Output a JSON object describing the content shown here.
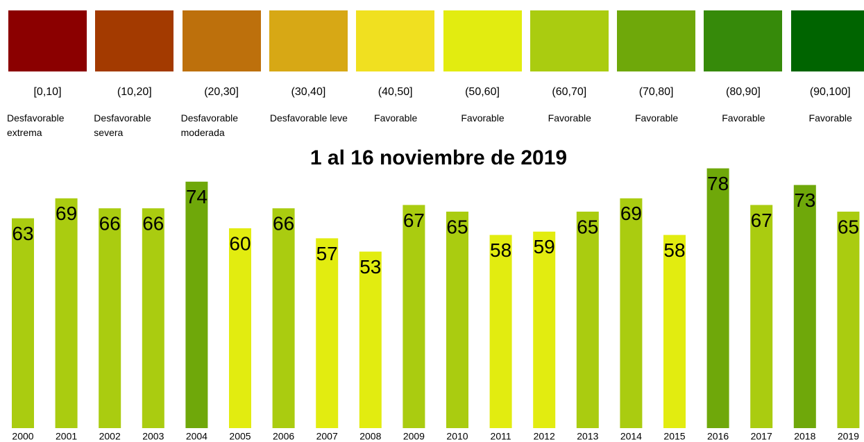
{
  "chart_data": {
    "type": "bar",
    "title": "1 al 16 noviembre de 2019",
    "categories": [
      "2000",
      "2001",
      "2002",
      "2003",
      "2004",
      "2005",
      "2006",
      "2007",
      "2008",
      "2009",
      "2010",
      "2011",
      "2012",
      "2013",
      "2014",
      "2015",
      "2016",
      "2017",
      "2018",
      "2019"
    ],
    "values": [
      63,
      69,
      66,
      66,
      74,
      60,
      66,
      57,
      53,
      67,
      65,
      58,
      59,
      65,
      69,
      58,
      78,
      67,
      73,
      65
    ],
    "legend": {
      "bins": [
        0,
        10,
        20,
        30,
        40,
        50,
        60,
        70,
        80,
        90,
        100
      ],
      "ranges": [
        "[0,10]",
        "(10,20]",
        "(20,30]",
        "(30,40]",
        "(40,50]",
        "(50,60]",
        "(60,70]",
        "(70,80]",
        "(80,90]",
        "(90,100]"
      ],
      "labels": [
        "Desfavorable extrema",
        "Desfavorable severa",
        "Desfavorable moderada",
        "Desfavorable leve",
        "Favorable",
        "Favorable",
        "Favorable",
        "Favorable",
        "Favorable",
        "Favorable"
      ],
      "colors": [
        "#8b0000",
        "#a33a00",
        "#bd700c",
        "#d7a815",
        "#f0e020",
        "#e2ec10",
        "#aacc10",
        "#6fa80a",
        "#368a0a",
        "#006400"
      ]
    }
  }
}
